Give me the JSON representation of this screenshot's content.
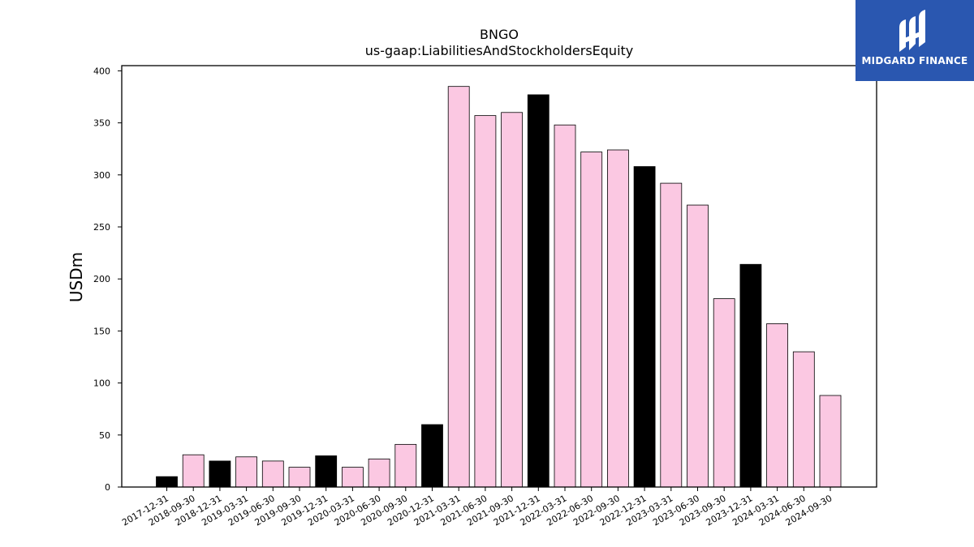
{
  "chart_data": {
    "type": "bar",
    "title": "BNGO",
    "subtitle": "us-gaap:LiabilitiesAndStockholdersEquity",
    "xlabel": "",
    "ylabel": "USDm",
    "ylim": [
      0,
      405
    ],
    "yticks": [
      0,
      50,
      100,
      150,
      200,
      250,
      300,
      350,
      400
    ],
    "grid": false,
    "legend": "none",
    "categories": [
      "2017-12-31",
      "2018-09-30",
      "2018-12-31",
      "2019-03-31",
      "2019-06-30",
      "2019-09-30",
      "2019-12-31",
      "2020-03-31",
      "2020-06-30",
      "2020-09-30",
      "2020-12-31",
      "2021-03-31",
      "2021-06-30",
      "2021-09-30",
      "2021-12-31",
      "2022-03-31",
      "2022-06-30",
      "2022-09-30",
      "2022-12-31",
      "2023-03-31",
      "2023-06-30",
      "2023-09-30",
      "2023-12-31",
      "2024-03-31",
      "2024-06-30",
      "2024-09-30"
    ],
    "values": [
      10,
      31,
      25,
      29,
      25,
      19,
      30,
      19,
      27,
      41,
      60,
      385,
      357,
      360,
      377,
      348,
      322,
      324,
      308,
      292,
      271,
      181,
      214,
      157,
      130,
      88
    ],
    "colors": {
      "year_end": "#000000",
      "quarter": "#fbc8e2",
      "edge": "#000000"
    }
  },
  "logo": {
    "text": "MIDGARD FINANCE",
    "background": "#2a57b0",
    "icon": "midgard-logo-icon"
  }
}
